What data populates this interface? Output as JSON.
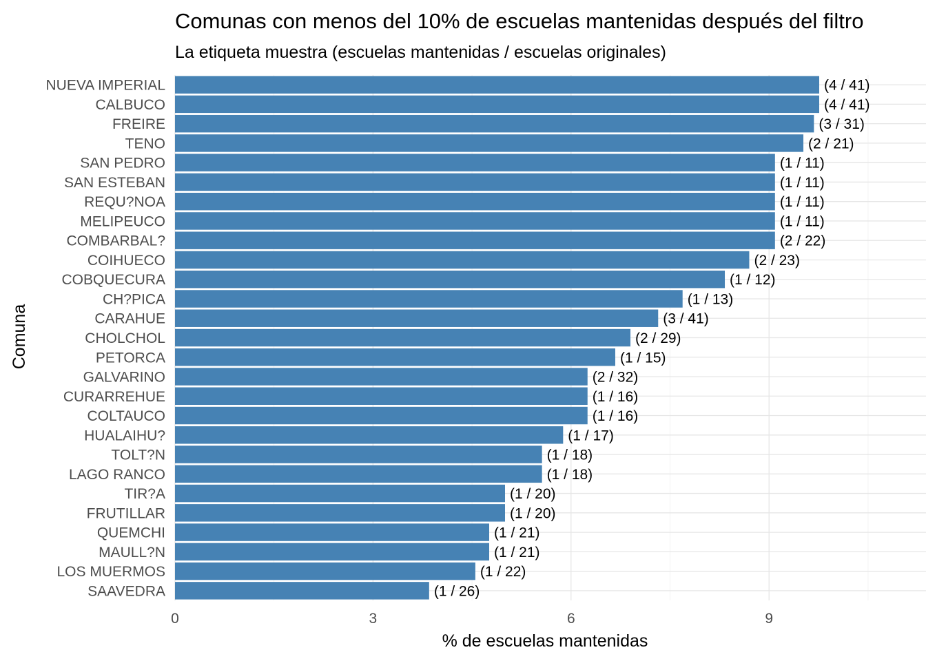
{
  "chart_data": {
    "type": "bar",
    "orientation": "horizontal",
    "title": "Comunas con menos del 10% de escuelas mantenidas después del filtro",
    "subtitle": "La etiqueta muestra (escuelas mantenidas / escuelas originales)",
    "xlabel": "% de escuelas mantenidas",
    "ylabel": "Comuna",
    "xlim": [
      0,
      11.1
    ],
    "xticks": [
      "0",
      "3",
      "6",
      "9"
    ],
    "grid": true,
    "bar_color": "#4682B4",
    "categories": [
      "NUEVA IMPERIAL",
      "CALBUCO",
      "FREIRE",
      "TENO",
      "SAN PEDRO",
      "SAN ESTEBAN",
      "REQU?NOA",
      "MELIPEUCO",
      "COMBARBAL?",
      "COIHUECO",
      "COBQUECURA",
      "CH?PICA",
      "CARAHUE",
      "CHOLCHOL",
      "PETORCA",
      "GALVARINO",
      "CURARREHUE",
      "COLTAUCO",
      "HUALAIHU?",
      "TOLT?N",
      "LAGO RANCO",
      "TIR?A",
      "FRUTILLAR",
      "QUEMCHI",
      "MAULL?N",
      "LOS MUERMOS",
      "SAAVEDRA"
    ],
    "values": [
      9.76,
      9.76,
      9.68,
      9.52,
      9.09,
      9.09,
      9.09,
      9.09,
      9.09,
      8.7,
      8.33,
      7.69,
      7.32,
      6.9,
      6.67,
      6.25,
      6.25,
      6.25,
      5.88,
      5.56,
      5.56,
      5.0,
      5.0,
      4.76,
      4.76,
      4.55,
      3.85
    ],
    "labels": [
      "(4 / 41)",
      "(4 / 41)",
      "(3 / 31)",
      "(2 / 21)",
      "(1 / 11)",
      "(1 / 11)",
      "(1 / 11)",
      "(1 / 11)",
      "(2 / 22)",
      "(2 / 23)",
      "(1 / 12)",
      "(1 / 13)",
      "(3 / 41)",
      "(2 / 29)",
      "(1 / 15)",
      "(2 / 32)",
      "(1 / 16)",
      "(1 / 16)",
      "(1 / 17)",
      "(1 / 18)",
      "(1 / 18)",
      "(1 / 20)",
      "(1 / 20)",
      "(1 / 21)",
      "(1 / 21)",
      "(1 / 22)",
      "(1 / 26)"
    ]
  }
}
